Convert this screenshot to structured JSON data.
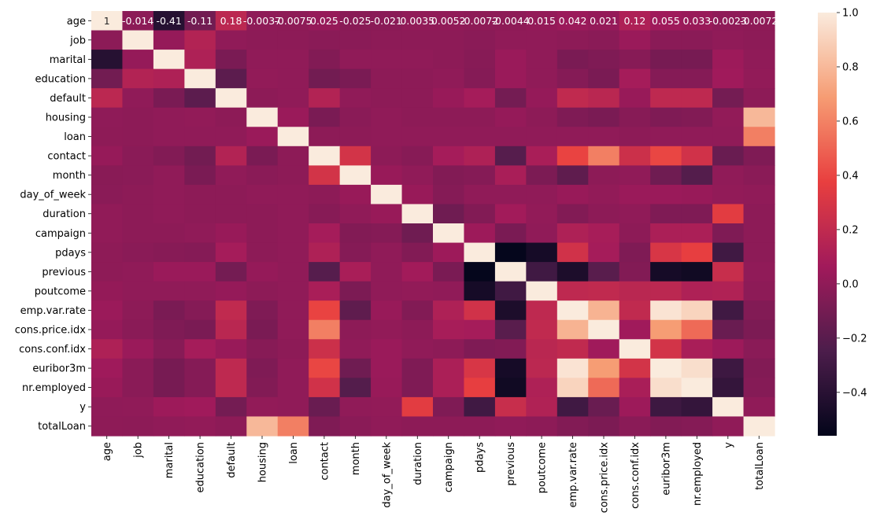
{
  "chart_data": {
    "type": "heatmap",
    "title": "",
    "xlabel": "",
    "ylabel": "",
    "labels": [
      "age",
      "job",
      "marital",
      "education",
      "default",
      "housing",
      "loan",
      "contact",
      "month",
      "day_of_week",
      "duration",
      "campaign",
      "pdays",
      "previous",
      "poutcome",
      "emp.var.rate",
      "cons.price.idx",
      "cons.conf.idx",
      "euribor3m",
      "nr.employed",
      "y",
      "totalLoan"
    ],
    "matrix": [
      [
        1.0,
        -0.014,
        -0.41,
        -0.11,
        0.18,
        -0.0037,
        -0.0075,
        0.025,
        -0.025,
        -0.021,
        0.0035,
        0.0052,
        -0.0072,
        -0.0044,
        0.015,
        0.042,
        0.021,
        0.12,
        0.055,
        0.033,
        -0.0023,
        -0.0072
      ],
      [
        -0.014,
        1.0,
        0.02,
        0.14,
        0.0,
        -0.01,
        -0.01,
        -0.02,
        -0.02,
        -0.01,
        -0.01,
        -0.01,
        -0.02,
        0.0,
        0.0,
        -0.01,
        -0.02,
        0.04,
        -0.02,
        -0.02,
        0.0,
        -0.01
      ],
      [
        -0.41,
        0.02,
        1.0,
        0.12,
        -0.08,
        0.0,
        0.0,
        -0.05,
        0.0,
        0.0,
        0.0,
        -0.01,
        -0.03,
        0.04,
        0.0,
        -0.08,
        -0.06,
        -0.03,
        -0.09,
        -0.09,
        0.05,
        0.0
      ],
      [
        -0.11,
        0.14,
        0.12,
        1.0,
        -0.19,
        0.01,
        0.0,
        -0.11,
        -0.08,
        -0.01,
        -0.01,
        0.0,
        -0.04,
        0.04,
        0.0,
        -0.04,
        -0.08,
        0.08,
        -0.04,
        -0.04,
        0.06,
        0.01
      ],
      [
        0.18,
        0.0,
        -0.08,
        -0.19,
        1.0,
        -0.01,
        0.0,
        0.14,
        0.0,
        -0.01,
        -0.01,
        0.03,
        0.08,
        -0.1,
        0.02,
        0.2,
        0.17,
        0.03,
        0.19,
        0.19,
        -0.1,
        -0.01
      ],
      [
        -0.0037,
        -0.01,
        0.0,
        0.01,
        -0.01,
        1.0,
        0.04,
        -0.08,
        -0.02,
        0.0,
        -0.01,
        -0.01,
        -0.01,
        0.02,
        -0.01,
        -0.06,
        -0.08,
        -0.03,
        -0.06,
        -0.05,
        0.01,
        0.8
      ],
      [
        -0.0075,
        -0.01,
        0.0,
        0.0,
        0.0,
        0.04,
        1.0,
        -0.01,
        -0.01,
        0.0,
        0.0,
        0.0,
        0.0,
        0.0,
        0.0,
        0.0,
        0.0,
        -0.01,
        0.0,
        0.0,
        0.0,
        0.59
      ],
      [
        0.025,
        -0.02,
        -0.05,
        -0.11,
        0.14,
        -0.08,
        -0.01,
        1.0,
        0.28,
        -0.01,
        -0.03,
        0.08,
        0.12,
        -0.21,
        0.1,
        0.39,
        0.59,
        0.25,
        0.4,
        0.27,
        -0.14,
        -0.06
      ],
      [
        -0.025,
        -0.02,
        0.0,
        -0.08,
        0.0,
        -0.02,
        -0.01,
        0.28,
        1.0,
        0.03,
        0.0,
        -0.05,
        -0.04,
        0.1,
        -0.07,
        -0.18,
        -0.01,
        0.0,
        -0.12,
        -0.22,
        0.0,
        -0.02
      ],
      [
        -0.021,
        -0.01,
        0.0,
        -0.01,
        -0.01,
        0.0,
        0.0,
        -0.01,
        0.03,
        1.0,
        0.03,
        -0.04,
        0.0,
        0.0,
        0.0,
        0.03,
        0.01,
        0.04,
        0.04,
        0.03,
        0.01,
        0.0
      ],
      [
        0.0035,
        -0.01,
        0.0,
        -0.01,
        -0.01,
        -0.01,
        0.0,
        -0.03,
        0.0,
        0.03,
        1.0,
        -0.12,
        -0.05,
        0.07,
        0.01,
        -0.05,
        -0.01,
        0.0,
        -0.06,
        -0.06,
        0.35,
        -0.01
      ],
      [
        0.0052,
        -0.01,
        -0.01,
        0.0,
        0.03,
        -0.01,
        0.0,
        0.08,
        -0.05,
        -0.04,
        -0.12,
        1.0,
        0.05,
        -0.08,
        0.0,
        0.12,
        0.09,
        -0.01,
        0.11,
        0.11,
        -0.06,
        -0.01
      ],
      [
        -0.0072,
        -0.02,
        -0.03,
        -0.04,
        0.08,
        -0.01,
        0.0,
        0.12,
        -0.04,
        0.0,
        -0.05,
        0.05,
        1.0,
        -0.55,
        -0.48,
        0.27,
        0.08,
        -0.06,
        0.3,
        0.37,
        -0.3,
        -0.01
      ],
      [
        -0.0044,
        0.0,
        0.04,
        0.04,
        -0.1,
        0.02,
        0.0,
        -0.21,
        0.1,
        0.0,
        0.07,
        -0.08,
        -0.55,
        1.0,
        -0.3,
        -0.45,
        -0.2,
        -0.05,
        -0.48,
        -0.5,
        0.23,
        0.0
      ],
      [
        0.015,
        0.0,
        0.0,
        0.0,
        0.02,
        -0.01,
        0.0,
        0.1,
        -0.07,
        0.0,
        0.01,
        0.0,
        -0.48,
        -0.3,
        1.0,
        0.19,
        0.2,
        0.17,
        0.18,
        0.12,
        0.13,
        -0.01
      ],
      [
        0.042,
        -0.01,
        -0.08,
        -0.04,
        0.2,
        -0.06,
        0.0,
        0.39,
        -0.18,
        0.03,
        -0.05,
        0.12,
        0.27,
        -0.45,
        0.19,
        1.0,
        0.78,
        0.2,
        0.97,
        0.91,
        -0.3,
        -0.05
      ],
      [
        0.021,
        -0.02,
        -0.06,
        -0.08,
        0.17,
        -0.08,
        0.0,
        0.59,
        -0.01,
        0.01,
        -0.01,
        0.09,
        0.08,
        -0.2,
        0.2,
        0.78,
        1.0,
        0.06,
        0.69,
        0.52,
        -0.14,
        -0.07
      ],
      [
        0.12,
        0.04,
        -0.03,
        0.08,
        0.03,
        -0.03,
        -0.01,
        0.25,
        0.0,
        0.04,
        0.0,
        -0.01,
        -0.06,
        -0.05,
        0.17,
        0.2,
        0.06,
        1.0,
        0.28,
        0.1,
        0.05,
        -0.02
      ],
      [
        0.055,
        -0.02,
        -0.09,
        -0.04,
        0.19,
        -0.06,
        0.0,
        0.4,
        -0.12,
        0.04,
        -0.06,
        0.11,
        0.3,
        -0.48,
        0.18,
        0.97,
        0.69,
        0.28,
        1.0,
        0.95,
        -0.31,
        -0.05
      ],
      [
        0.033,
        -0.02,
        -0.09,
        -0.04,
        0.19,
        -0.05,
        0.0,
        0.27,
        -0.22,
        0.03,
        -0.06,
        0.11,
        0.37,
        -0.5,
        0.12,
        0.91,
        0.52,
        0.1,
        0.95,
        1.0,
        -0.35,
        -0.04
      ],
      [
        -0.0023,
        0.0,
        0.05,
        0.06,
        -0.1,
        0.01,
        0.0,
        -0.14,
        0.0,
        0.01,
        0.35,
        -0.06,
        -0.3,
        0.23,
        0.13,
        -0.3,
        -0.14,
        0.05,
        -0.31,
        -0.35,
        1.0,
        0.0
      ],
      [
        -0.0072,
        -0.01,
        0.0,
        0.01,
        -0.01,
        0.8,
        0.59,
        -0.06,
        -0.02,
        0.0,
        -0.01,
        -0.01,
        -0.01,
        0.0,
        -0.01,
        -0.05,
        -0.07,
        -0.02,
        -0.05,
        -0.04,
        0.0,
        1.0
      ]
    ],
    "annotated_row": "age",
    "annotations": [
      "1",
      "-0.014",
      "-0.41",
      "-0.11",
      "0.18",
      "-0.0037",
      "-0.0075",
      "0.025",
      "-0.025",
      "-0.021",
      "0.0035",
      "0.0052",
      "-0.0072",
      "-0.0044",
      "0.015",
      "0.042",
      "0.021",
      "0.12",
      "0.055",
      "0.033",
      "-0.0023",
      "-0.0072"
    ],
    "colormap": "rocket",
    "colorbar": {
      "vmin": -0.56,
      "vmax": 1.0,
      "ticks": [
        1.0,
        0.8,
        0.6,
        0.4,
        0.2,
        0.0,
        -0.2,
        -0.4
      ],
      "tick_labels": [
        "1.0",
        "0.8",
        "0.6",
        "0.4",
        "0.2",
        "0.0",
        "−0.2",
        "−0.4"
      ],
      "placement": "right"
    },
    "colors": {
      "cmap_stops": [
        "#03051a",
        "#4c1d4b",
        "#a11a5b",
        "#e83f3f",
        "#f69c73",
        "#faebdd"
      ],
      "annotation_text_light": "#ffffff",
      "annotation_text_dark": "#262626"
    }
  }
}
